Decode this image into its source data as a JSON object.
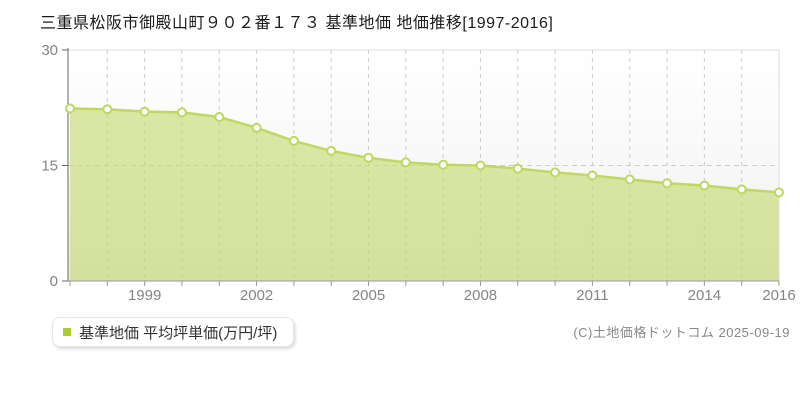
{
  "header": {
    "title": "三重県松阪市御殿山町９０２番１７３ 基準地価 地価推移[1997-2016]"
  },
  "chart_data": {
    "type": "area",
    "title": "三重県松阪市御殿山町９０２番１７３ 基準地価 地価推移[1997-2016]",
    "series_name": "基準地価 平均坪単価(万円/坪)",
    "x": [
      1997,
      1998,
      1999,
      2000,
      2001,
      2002,
      2003,
      2004,
      2005,
      2006,
      2007,
      2008,
      2009,
      2010,
      2011,
      2012,
      2013,
      2014,
      2015,
      2016
    ],
    "values": [
      22.4,
      22.3,
      22.0,
      21.9,
      21.3,
      19.9,
      18.2,
      16.9,
      16.0,
      15.4,
      15.1,
      15.0,
      14.6,
      14.1,
      13.7,
      13.2,
      12.7,
      12.4,
      11.9,
      11.5
    ],
    "ylabel": "平均坪単価(万円/坪)",
    "xlabel": "",
    "ylim": [
      0,
      30
    ],
    "yticks": [
      0,
      15,
      30
    ],
    "xticks": [
      1999,
      2002,
      2005,
      2008,
      2011,
      2014,
      2016
    ],
    "grid": "dashed",
    "legend_position": "bottom-left",
    "colors": {
      "area_fill": "rgba(195,217,106,0.6)",
      "line": "#c0d763",
      "marker_fill": "#ffffff",
      "marker_stroke": "#c0d763",
      "legend_square": "#a9cd2d",
      "gridline": "#cccccc",
      "y_axis": "#666666",
      "x_axis": "#999999",
      "plot_border": "#dddddd",
      "axis_label": "#858585"
    }
  },
  "legend": {
    "label": "基準地価 平均坪単価(万円/坪)"
  },
  "footer": {
    "copyright": "(C)土地価格ドットコム 2025-09-19"
  }
}
